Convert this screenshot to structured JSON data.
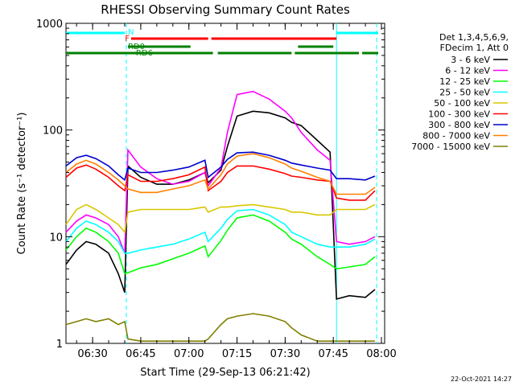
{
  "chart_data": {
    "type": "line",
    "title": "RHESSI Observing Summary Count Rates",
    "xlabel": "Start Time (29-Sep-13 06:21:42)",
    "ylabel": "Count Rate (s⁻¹ detector⁻¹)",
    "yscale": "log",
    "ylim": [
      1,
      1000
    ],
    "xlim": [
      "06:21:42",
      "08:01:00"
    ],
    "x_ticks": [
      "06:30",
      "06:45",
      "07:00",
      "07:15",
      "07:30",
      "07:45",
      "08:00"
    ],
    "y_ticks": [
      "1",
      "10",
      "100",
      "1000"
    ],
    "grid": false,
    "legend_position": "right",
    "legend_header": [
      "Det 1,3,4,5,6,9,",
      "FDecim 1, Att 0"
    ],
    "timestamp": "22-Oct-2021 14:27",
    "flags": {
      "N_label": "N",
      "F_label": "F",
      "RD0_label": "RD0",
      "RD6_label": "RD6",
      "N_color": "#00ffff",
      "F_color": "#ff0000",
      "RD_color": "#008000",
      "N_segments": [
        [
          "06:21:42",
          "06:40:00"
        ],
        [
          "07:46:00",
          "07:59:00"
        ]
      ],
      "F_segments": [
        [
          "06:42:00",
          "07:06:00"
        ],
        [
          "07:07:00",
          "07:46:00"
        ]
      ],
      "RD0_segments": [
        [
          "06:41:00",
          "07:00:30"
        ],
        [
          "07:34:00",
          "07:45:00"
        ]
      ],
      "RD6_segments": [
        [
          "06:21:42",
          "07:07:30"
        ],
        [
          "07:09:00",
          "07:32:00"
        ],
        [
          "07:33:00",
          "07:53:00"
        ],
        [
          "07:54:00",
          "07:59:00"
        ]
      ]
    },
    "vlines": [
      "06:40:30",
      "07:46:00",
      "07:58:30"
    ],
    "series": [
      {
        "name": "3 - 6 keV",
        "color": "#000000",
        "x": [
          "06:21:42",
          "06:25",
          "06:28",
          "06:31",
          "06:35",
          "06:38",
          "06:40",
          "06:41",
          "06:45",
          "06:50",
          "06:55",
          "07:00",
          "07:05",
          "07:06",
          "07:10",
          "07:12",
          "07:15",
          "07:20",
          "07:25",
          "07:30",
          "07:32",
          "07:35",
          "07:40",
          "07:44",
          "07:46",
          "07:50",
          "07:55",
          "07:58"
        ],
        "y": [
          5.5,
          7.5,
          9,
          8.5,
          7,
          4.5,
          3,
          46,
          36,
          31,
          31,
          34,
          40,
          32,
          42,
          70,
          135,
          150,
          145,
          130,
          118,
          110,
          80,
          62,
          2.6,
          2.8,
          2.7,
          3.2
        ]
      },
      {
        "name": "6 - 12 keV",
        "color": "#ff00ff",
        "x": [
          "06:21:42",
          "06:25",
          "06:28",
          "06:31",
          "06:35",
          "06:38",
          "06:40",
          "06:41",
          "06:45",
          "06:50",
          "06:55",
          "07:00",
          "07:05",
          "07:06",
          "07:10",
          "07:12",
          "07:15",
          "07:20",
          "07:25",
          "07:30",
          "07:32",
          "07:35",
          "07:40",
          "07:44",
          "07:46",
          "07:50",
          "07:55",
          "07:58"
        ],
        "y": [
          11,
          14,
          16,
          15,
          13,
          10,
          7,
          65,
          45,
          35,
          31,
          33,
          40,
          30,
          44,
          95,
          215,
          230,
          195,
          150,
          130,
          95,
          65,
          52,
          9,
          8.5,
          9,
          10
        ]
      },
      {
        "name": "12 - 25 keV",
        "color": "#00ff00",
        "x": [
          "06:21:42",
          "06:25",
          "06:28",
          "06:31",
          "06:35",
          "06:38",
          "06:40",
          "06:41",
          "06:45",
          "06:50",
          "06:55",
          "07:00",
          "07:05",
          "07:06",
          "07:10",
          "07:12",
          "07:15",
          "07:20",
          "07:25",
          "07:30",
          "07:32",
          "07:35",
          "07:40",
          "07:44",
          "07:46",
          "07:50",
          "07:55",
          "07:58"
        ],
        "y": [
          7.5,
          10,
          12,
          11,
          9,
          7,
          4.5,
          4.6,
          5.1,
          5.5,
          6.2,
          7,
          8.2,
          6.5,
          9.2,
          11.5,
          15,
          16,
          14,
          11,
          9.5,
          8.5,
          6.5,
          5.5,
          5,
          5.2,
          5.5,
          6.5
        ]
      },
      {
        "name": "25 - 50 keV",
        "color": "#00ffff",
        "x": [
          "06:21:42",
          "06:25",
          "06:28",
          "06:31",
          "06:35",
          "06:38",
          "06:40",
          "06:41",
          "06:45",
          "06:50",
          "06:55",
          "07:00",
          "07:05",
          "07:06",
          "07:10",
          "07:12",
          "07:15",
          "07:20",
          "07:25",
          "07:30",
          "07:32",
          "07:35",
          "07:40",
          "07:44",
          "07:46",
          "07:50",
          "07:55",
          "07:58"
        ],
        "y": [
          9,
          12,
          14,
          13,
          11,
          9,
          7,
          7,
          7.5,
          8,
          8.5,
          9.5,
          11,
          9,
          12,
          14.5,
          17.5,
          18,
          16,
          13,
          11,
          10,
          8.5,
          8,
          8,
          8,
          8.5,
          9.5
        ]
      },
      {
        "name": "50 - 100 keV",
        "color": "#d8c800",
        "x": [
          "06:21:42",
          "06:25",
          "06:28",
          "06:31",
          "06:35",
          "06:38",
          "06:40",
          "06:41",
          "06:45",
          "06:50",
          "06:55",
          "07:00",
          "07:05",
          "07:06",
          "07:10",
          "07:12",
          "07:15",
          "07:20",
          "07:25",
          "07:30",
          "07:32",
          "07:35",
          "07:40",
          "07:44",
          "07:46",
          "07:50",
          "07:55",
          "07:58"
        ],
        "y": [
          13,
          18,
          20,
          18,
          15,
          13,
          11,
          17,
          18,
          18,
          18,
          18,
          19,
          17,
          19,
          19,
          19.5,
          20,
          19,
          18,
          17,
          17,
          16,
          16,
          18,
          18,
          18,
          20
        ]
      },
      {
        "name": "100 - 300 keV",
        "color": "#ff0000",
        "x": [
          "06:21:42",
          "06:25",
          "06:28",
          "06:31",
          "06:35",
          "06:38",
          "06:40",
          "06:41",
          "06:45",
          "06:50",
          "06:55",
          "07:00",
          "07:05",
          "07:06",
          "07:10",
          "07:12",
          "07:15",
          "07:20",
          "07:25",
          "07:30",
          "07:32",
          "07:35",
          "07:40",
          "07:44",
          "07:46",
          "07:50",
          "07:55",
          "07:58"
        ],
        "y": [
          36,
          44,
          47,
          43,
          36,
          30,
          27,
          38,
          33,
          33,
          35,
          38,
          45,
          27,
          33,
          40,
          46,
          46,
          43,
          39,
          37,
          36,
          34,
          33,
          23,
          22,
          22,
          27
        ]
      },
      {
        "name": "300 - 800 keV",
        "color": "#0000cc",
        "x": [
          "06:21:42",
          "06:25",
          "06:28",
          "06:31",
          "06:35",
          "06:38",
          "06:40",
          "06:41",
          "06:45",
          "06:50",
          "06:55",
          "07:00",
          "07:05",
          "07:06",
          "07:10",
          "07:12",
          "07:15",
          "07:20",
          "07:25",
          "07:30",
          "07:32",
          "07:35",
          "07:40",
          "07:44",
          "07:46",
          "07:50",
          "07:55",
          "07:58"
        ],
        "y": [
          46,
          55,
          58,
          54,
          46,
          38,
          34,
          44,
          40,
          40,
          42,
          45,
          52,
          36,
          45,
          53,
          61,
          62,
          58,
          52,
          49,
          47,
          44,
          42,
          35,
          35,
          34,
          37
        ]
      },
      {
        "name": "800 - 7000 keV",
        "color": "#ff8000",
        "x": [
          "06:21:42",
          "06:25",
          "06:28",
          "06:31",
          "06:35",
          "06:38",
          "06:40",
          "06:41",
          "06:45",
          "06:50",
          "06:55",
          "07:00",
          "07:05",
          "07:06",
          "07:10",
          "07:12",
          "07:15",
          "07:20",
          "07:25",
          "07:30",
          "07:32",
          "07:35",
          "07:40",
          "07:44",
          "07:46",
          "07:50",
          "07:55",
          "07:58"
        ],
        "y": [
          40,
          48,
          52,
          48,
          40,
          34,
          30,
          28,
          26,
          26,
          28,
          30,
          34,
          28,
          38,
          48,
          57,
          60,
          55,
          48,
          44,
          41,
          36,
          33,
          25,
          25,
          25,
          29
        ]
      },
      {
        "name": "7000 - 15000 keV",
        "color": "#808000",
        "x": [
          "06:21:42",
          "06:25",
          "06:28",
          "06:31",
          "06:35",
          "06:38",
          "06:40",
          "06:41",
          "06:45",
          "06:50",
          "06:55",
          "07:00",
          "07:05",
          "07:06",
          "07:10",
          "07:12",
          "07:15",
          "07:20",
          "07:25",
          "07:30",
          "07:32",
          "07:35",
          "07:40",
          "07:44",
          "07:46",
          "07:50",
          "07:55",
          "07:58"
        ],
        "y": [
          1.5,
          1.6,
          1.7,
          1.6,
          1.7,
          1.5,
          1.6,
          1.1,
          1.05,
          1.05,
          1.05,
          1.05,
          1.05,
          1.1,
          1.5,
          1.7,
          1.8,
          1.9,
          1.8,
          1.6,
          1.4,
          1.2,
          1.05,
          1.05,
          1.05,
          1.05,
          1.05,
          1.05
        ]
      }
    ]
  }
}
